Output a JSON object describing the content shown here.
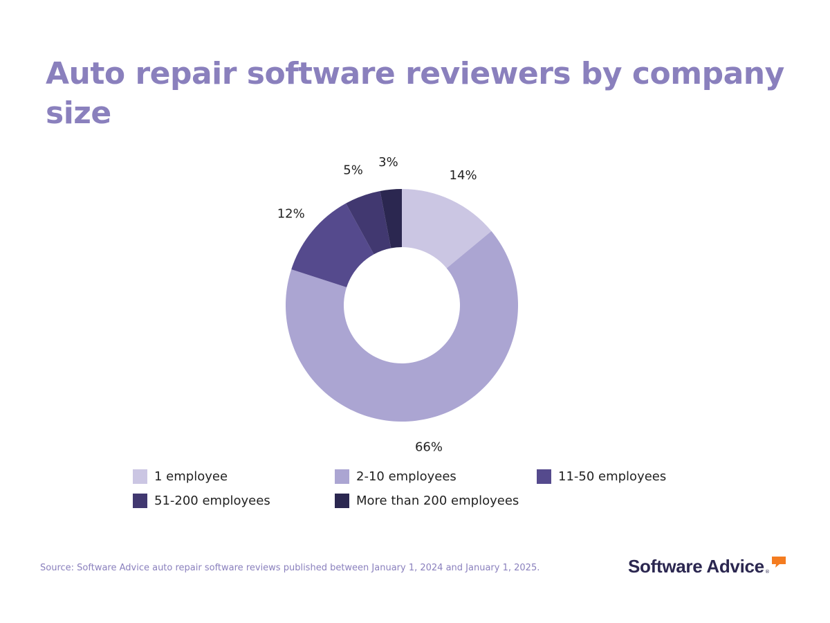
{
  "title": "Auto repair software reviewers by company size",
  "colors": {
    "title": "#8a80bd",
    "source": "#8a80bd",
    "brand_text": "#2b2750",
    "brand_accent": "#f47c20"
  },
  "chart_data": {
    "type": "pie",
    "donut": true,
    "title": "Auto repair software reviewers by company size",
    "slices": [
      {
        "label": "1 employee",
        "value": 14,
        "display": "14%",
        "color": "#cbc6e3"
      },
      {
        "label": "2-10 employees",
        "value": 66,
        "display": "66%",
        "color": "#aba5d2"
      },
      {
        "label": "11-50 employees",
        "value": 12,
        "display": "12%",
        "color": "#554a8d"
      },
      {
        "label": "51-200 employees",
        "value": 5,
        "display": "5%",
        "color": "#413870"
      },
      {
        "label": "More than 200 employees",
        "value": 3,
        "display": "3%",
        "color": "#2b2750"
      }
    ],
    "legend_position": "bottom"
  },
  "source": "Source: Software Advice auto repair software reviews published between January 1, 2024 and January 1, 2025.",
  "brand": {
    "name": "Software Advice",
    "reg_mark": "®",
    "icon": "speech-bubble-icon"
  }
}
